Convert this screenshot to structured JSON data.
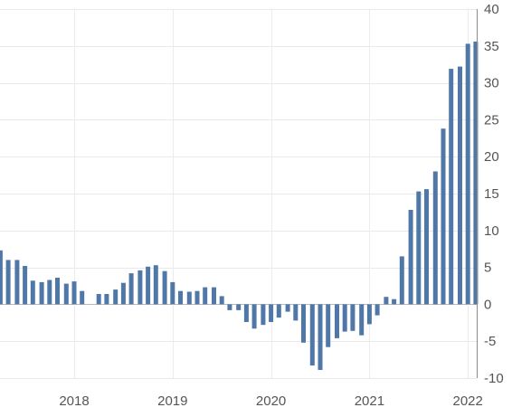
{
  "chart_data": {
    "type": "bar",
    "title": "",
    "xlabel": "",
    "ylabel": "",
    "ylim": [
      -10,
      40
    ],
    "yticks": [
      -10,
      -5,
      0,
      5,
      10,
      15,
      20,
      25,
      30,
      35,
      40
    ],
    "xticks": [
      "2018",
      "2019",
      "2020",
      "2021",
      "2022"
    ],
    "xtick_positions": [
      2018.0,
      2019.0,
      2020.0,
      2021.0,
      2022.0
    ],
    "xlim": [
      2017.25,
      2022.17
    ],
    "x": [
      2017.25,
      2017.33,
      2017.42,
      2017.5,
      2017.58,
      2017.67,
      2017.75,
      2017.83,
      2017.92,
      2018.0,
      2018.08,
      2018.17,
      2018.25,
      2018.33,
      2018.42,
      2018.5,
      2018.58,
      2018.67,
      2018.75,
      2018.83,
      2018.92,
      2019.0,
      2019.08,
      2019.17,
      2019.25,
      2019.33,
      2019.42,
      2019.5,
      2019.58,
      2019.67,
      2019.75,
      2019.83,
      2019.92,
      2020.0,
      2020.08,
      2020.17,
      2020.25,
      2020.33,
      2020.42,
      2020.5,
      2020.58,
      2020.67,
      2020.75,
      2020.83,
      2020.92,
      2021.0,
      2021.08,
      2021.17,
      2021.25,
      2021.33,
      2021.42,
      2021.5,
      2021.58,
      2021.67,
      2021.75,
      2021.83,
      2021.92,
      2022.0,
      2022.08
    ],
    "values": [
      7.3,
      6.0,
      6.0,
      5.2,
      3.2,
      3.0,
      3.3,
      3.6,
      2.8,
      3.1,
      1.8,
      0,
      1.4,
      1.4,
      2.0,
      2.9,
      4.2,
      4.6,
      5.1,
      5.3,
      4.5,
      3.0,
      1.8,
      1.7,
      1.8,
      2.3,
      2.3,
      1.1,
      -0.8,
      -0.8,
      -2.4,
      -3.3,
      -2.8,
      -2.4,
      -1.8,
      -1.0,
      -2.2,
      -5.2,
      -8.3,
      -8.9,
      -5.8,
      -4.6,
      -3.7,
      -3.6,
      -4.2,
      -2.7,
      -1.5,
      1.0,
      0.7,
      6.5,
      12.8,
      15.3,
      15.6,
      18.0,
      23.8,
      31.9,
      32.2,
      35.3,
      35.6
    ],
    "bar_color": "#4f78a8",
    "y_axis_side": "right",
    "grid": true
  }
}
